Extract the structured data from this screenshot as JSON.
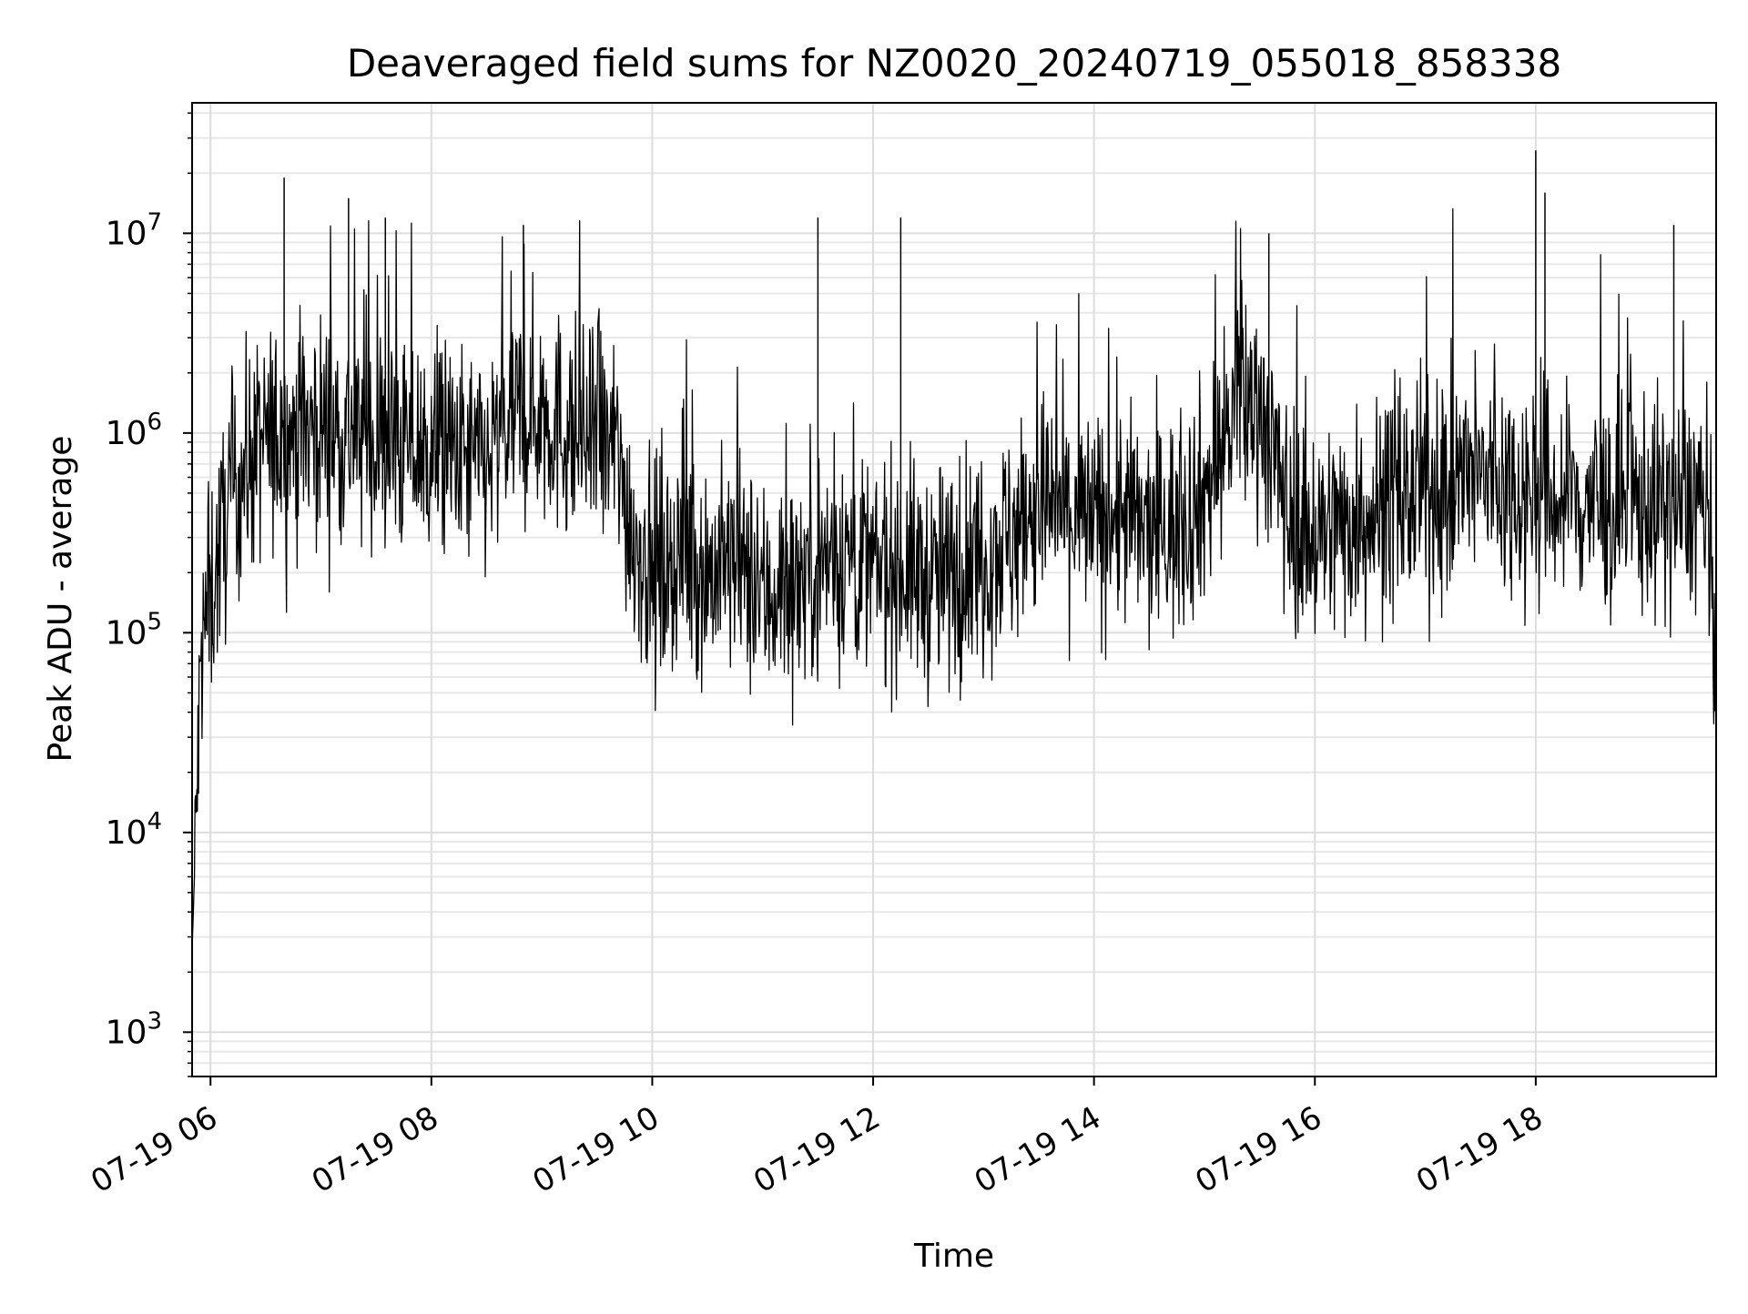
{
  "colors": {
    "background": "#ffffff",
    "line": "#000000",
    "grid_major": "#dddddd",
    "grid_minor": "#e8e8e8",
    "frame": "#000000"
  },
  "chart_data": {
    "type": "line",
    "title": "Deaveraged field sums for NZ0020_20240719_055018_858338",
    "xlabel": "Time",
    "ylabel": "Peak ADU - average",
    "y_scale": "log",
    "ylim": [
      600,
      45000000
    ],
    "xlim": [
      "2024-07-19 05:50",
      "2024-07-19 19:38"
    ],
    "grid": true,
    "x_ticks": [
      {
        "t": "2024-07-19 06:00",
        "label": "07-19 06"
      },
      {
        "t": "2024-07-19 08:00",
        "label": "07-19 08"
      },
      {
        "t": "2024-07-19 10:00",
        "label": "07-19 10"
      },
      {
        "t": "2024-07-19 12:00",
        "label": "07-19 12"
      },
      {
        "t": "2024-07-19 14:00",
        "label": "07-19 14"
      },
      {
        "t": "2024-07-19 16:00",
        "label": "07-19 16"
      },
      {
        "t": "2024-07-19 18:00",
        "label": "07-19 18"
      }
    ],
    "y_ticks": [
      {
        "value": 1000,
        "base": "10",
        "exp": "3"
      },
      {
        "value": 10000,
        "base": "10",
        "exp": "4"
      },
      {
        "value": 100000,
        "base": "10",
        "exp": "5"
      },
      {
        "value": 1000000,
        "base": "10",
        "exp": "6"
      },
      {
        "value": 10000000,
        "base": "10",
        "exp": "7"
      }
    ],
    "series": [
      {
        "x": [
          "2024-07-19 05:50",
          "2024-07-19 05:55",
          "2024-07-19 06:00",
          "2024-07-19 06:10",
          "2024-07-19 06:20",
          "2024-07-19 06:30",
          "2024-07-19 06:45",
          "2024-07-19 07:00",
          "2024-07-19 07:15",
          "2024-07-19 07:30",
          "2024-07-19 07:45",
          "2024-07-19 08:00",
          "2024-07-19 08:15",
          "2024-07-19 08:30",
          "2024-07-19 08:45",
          "2024-07-19 09:00",
          "2024-07-19 09:15",
          "2024-07-19 09:30",
          "2024-07-19 09:40",
          "2024-07-19 09:50",
          "2024-07-19 10:00",
          "2024-07-19 10:15",
          "2024-07-19 10:30",
          "2024-07-19 10:45",
          "2024-07-19 11:00",
          "2024-07-19 11:15",
          "2024-07-19 11:30",
          "2024-07-19 11:45",
          "2024-07-19 12:00",
          "2024-07-19 12:15",
          "2024-07-19 12:30",
          "2024-07-19 12:45",
          "2024-07-19 13:00",
          "2024-07-19 13:15",
          "2024-07-19 13:30",
          "2024-07-19 13:45",
          "2024-07-19 14:00",
          "2024-07-19 14:15",
          "2024-07-19 14:30",
          "2024-07-19 14:45",
          "2024-07-19 15:00",
          "2024-07-19 15:15",
          "2024-07-19 15:30",
          "2024-07-19 15:45",
          "2024-07-19 16:00",
          "2024-07-19 16:15",
          "2024-07-19 16:30",
          "2024-07-19 16:45",
          "2024-07-19 17:00",
          "2024-07-19 17:15",
          "2024-07-19 17:30",
          "2024-07-19 17:45",
          "2024-07-19 18:00",
          "2024-07-19 18:15",
          "2024-07-19 18:30",
          "2024-07-19 18:45",
          "2024-07-19 19:00",
          "2024-07-19 19:15",
          "2024-07-19 19:30",
          "2024-07-19 19:38"
        ],
        "y": [
          2500,
          80000,
          150000,
          450000,
          700000,
          900000,
          1000000,
          1100000,
          1000000,
          900000,
          850000,
          800000,
          750000,
          700000,
          1200000,
          1300000,
          1000000,
          900000,
          850000,
          300000,
          200000,
          250000,
          200000,
          220000,
          150000,
          180000,
          220000,
          250000,
          200000,
          220000,
          180000,
          200000,
          250000,
          300000,
          450000,
          400000,
          350000,
          400000,
          300000,
          350000,
          500000,
          1200000,
          1500000,
          400000,
          300000,
          350000,
          400000,
          450000,
          500000,
          550000,
          600000,
          550000,
          500000,
          450000,
          450000,
          400000,
          450000,
          400000,
          500000,
          80000
        ]
      }
    ],
    "spikes": [
      {
        "t": "2024-07-19 06:40",
        "value": 19000000
      },
      {
        "t": "2024-07-19 07:15",
        "value": 15000000
      },
      {
        "t": "2024-07-19 07:35",
        "value": 12000000
      },
      {
        "t": "2024-07-19 08:50",
        "value": 11000000
      },
      {
        "t": "2024-07-19 11:30",
        "value": 12000000
      },
      {
        "t": "2024-07-19 12:15",
        "value": 12000000
      },
      {
        "t": "2024-07-19 15:35",
        "value": 10000000
      },
      {
        "t": "2024-07-19 18:00",
        "value": 26000000
      },
      {
        "t": "2024-07-19 18:05",
        "value": 16000000
      },
      {
        "t": "2024-07-19 19:15",
        "value": 11000000
      }
    ]
  }
}
